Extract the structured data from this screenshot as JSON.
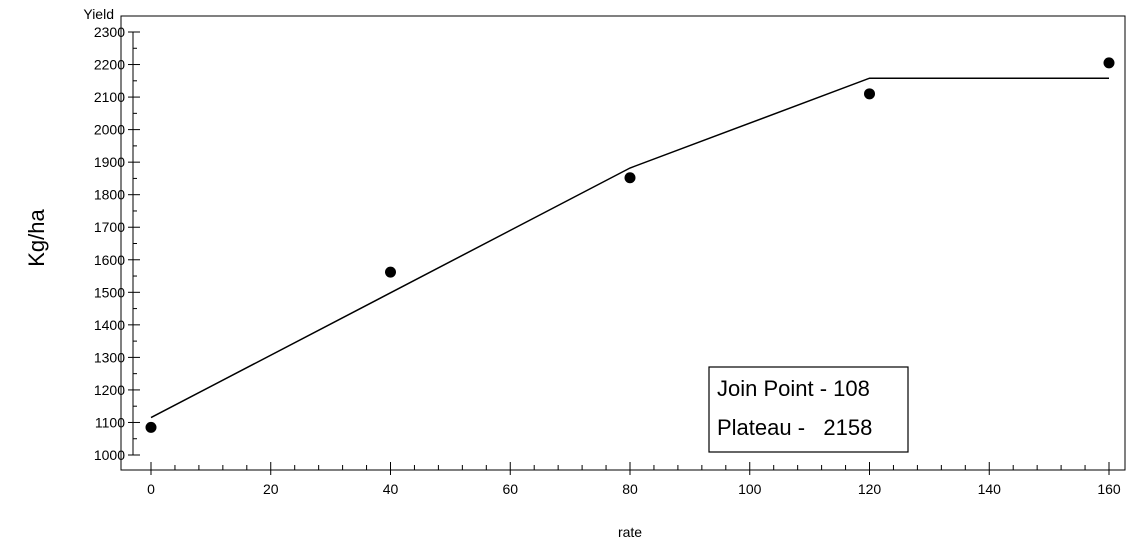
{
  "chart_data": {
    "type": "line",
    "title": "",
    "xlabel": "rate",
    "ylabel": "Kg/ha",
    "y_axis_top_label": "Yield",
    "xlim": [
      0,
      160
    ],
    "ylim": [
      1000,
      2300
    ],
    "x_ticks": [
      0,
      20,
      40,
      60,
      80,
      100,
      120,
      140,
      160
    ],
    "y_ticks": [
      1000,
      1100,
      1200,
      1300,
      1400,
      1500,
      1600,
      1700,
      1800,
      1900,
      2000,
      2100,
      2200,
      2300
    ],
    "grid": false,
    "series": [
      {
        "kind": "scatter",
        "x": [
          0,
          40,
          80,
          120,
          160
        ],
        "y": [
          1085,
          1562,
          1852,
          2110,
          2205
        ]
      },
      {
        "kind": "line",
        "x": [
          0,
          80,
          120,
          160
        ],
        "y": [
          1115,
          1882,
          2158,
          2158
        ]
      }
    ],
    "annotation": {
      "line1": "Join Point - 108",
      "line2": "Plateau -   2158"
    },
    "colors": {
      "marks": "#000000",
      "background": "#ffffff"
    }
  }
}
